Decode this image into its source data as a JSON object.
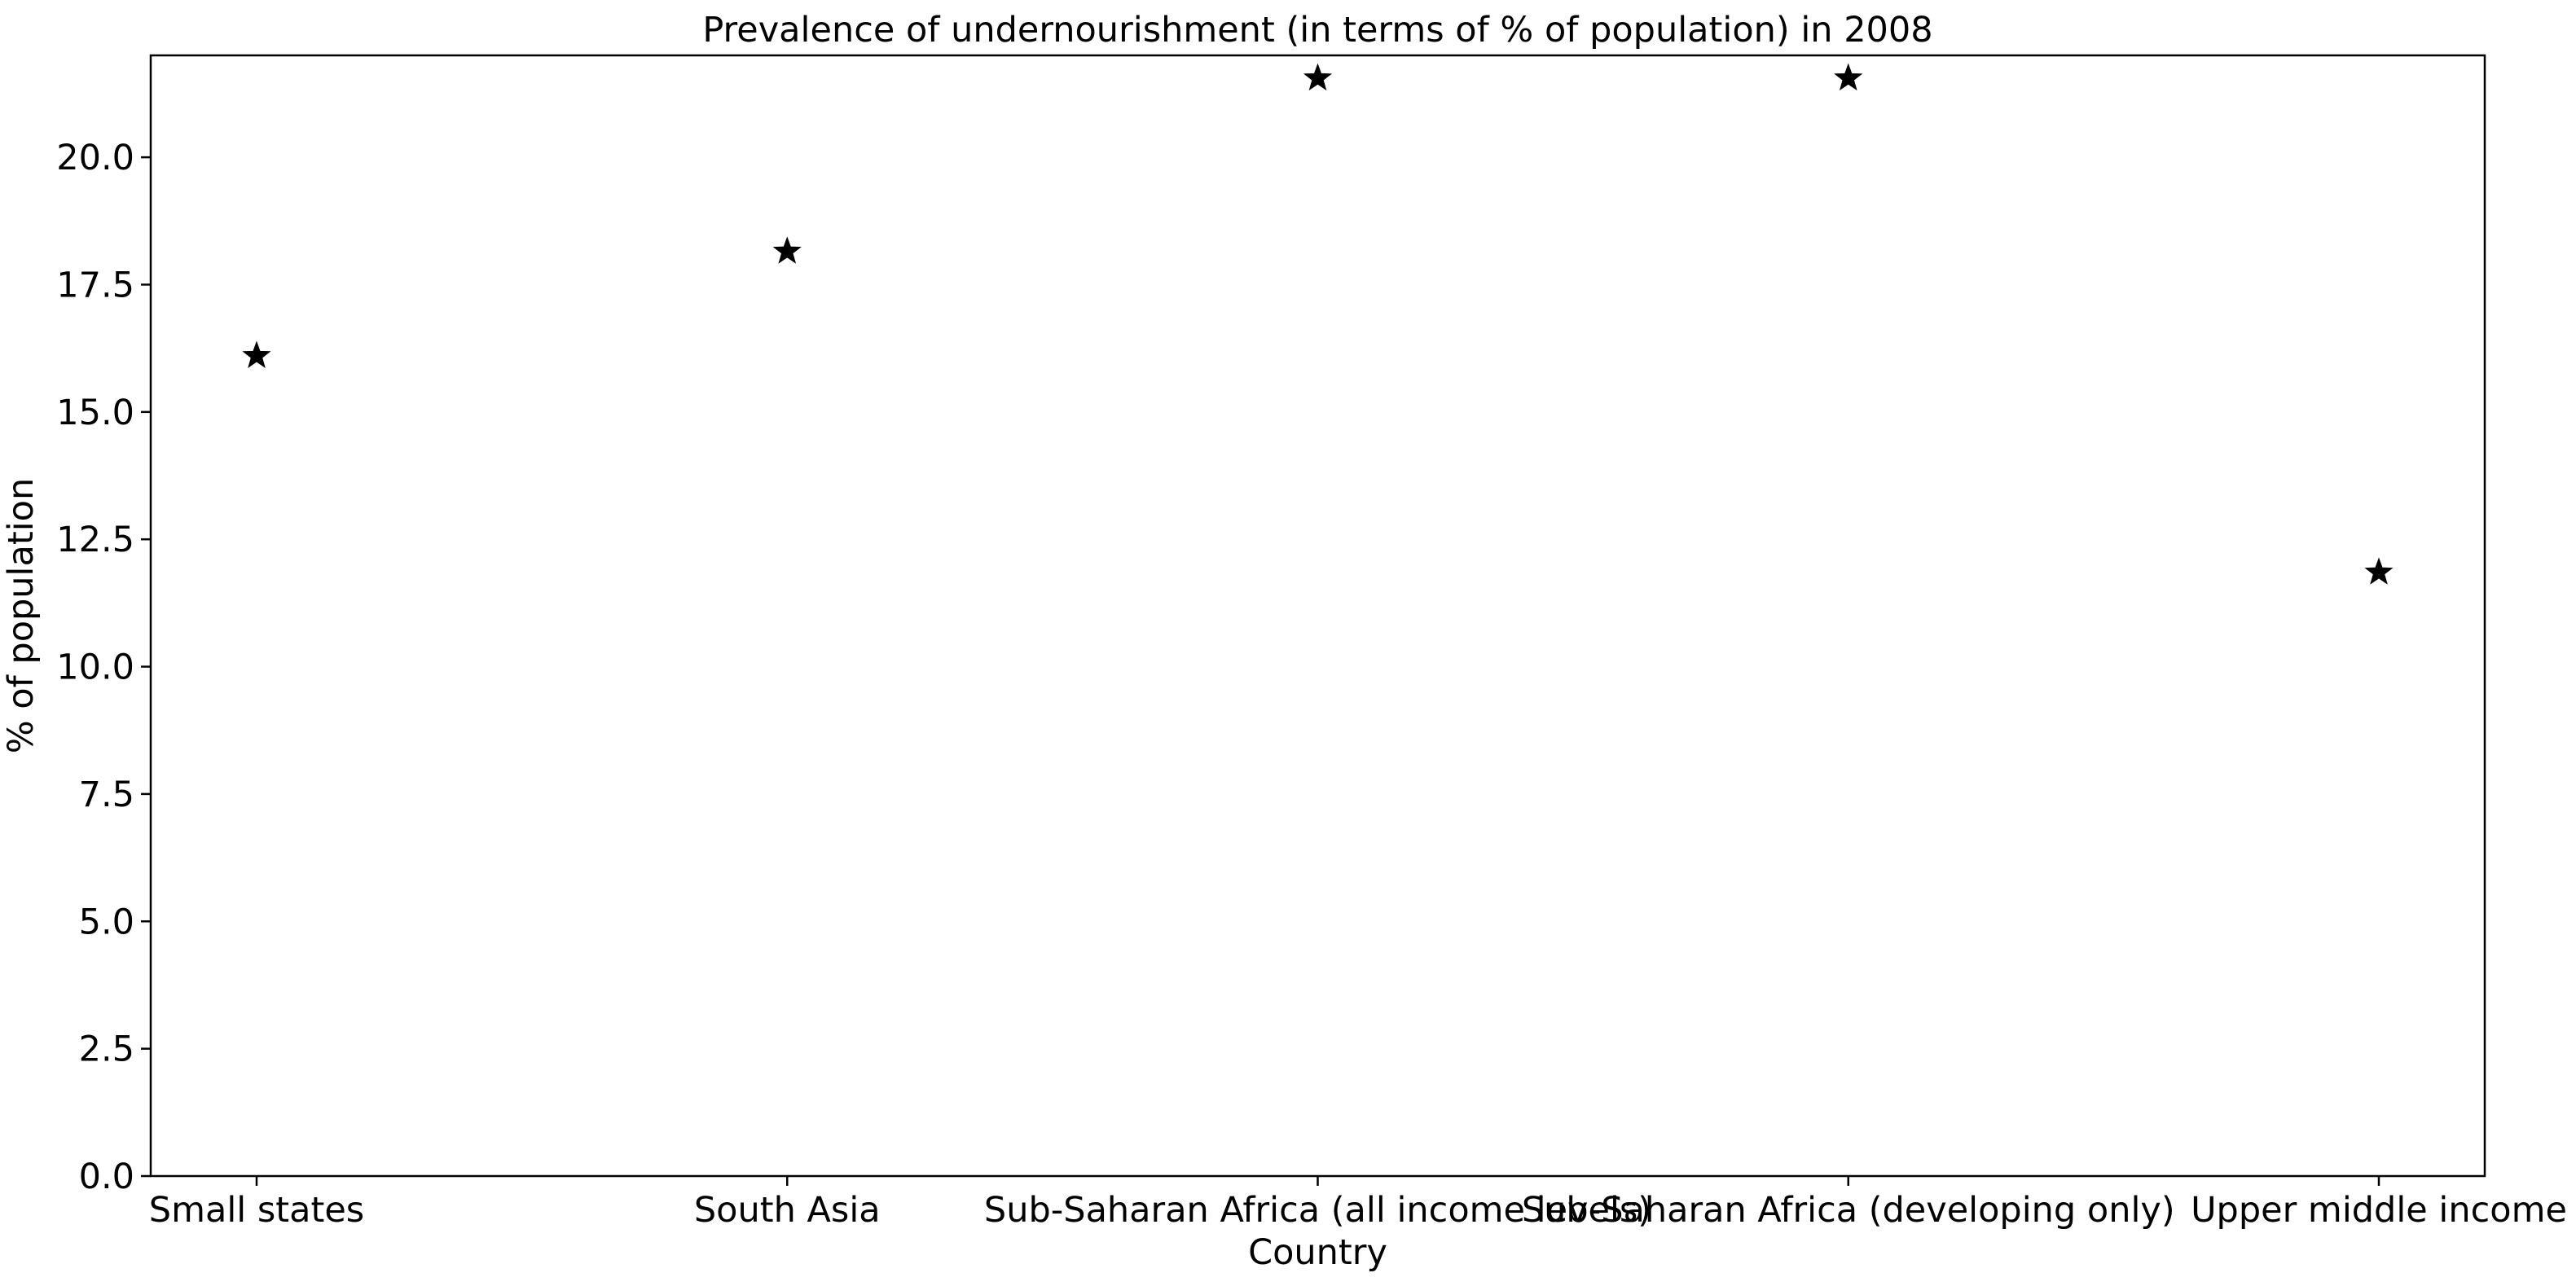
{
  "chart_data": {
    "type": "scatter",
    "title": "Prevalence of undernourishment (in terms of % of population) in 2008",
    "xlabel": "Country",
    "ylabel": "% of population",
    "categories": [
      "Small states",
      "South Asia",
      "Sub-Saharan Africa (all income levels)",
      "Sub-Saharan Africa (developing only)",
      "Upper middle income"
    ],
    "values": [
      16.1,
      18.15,
      21.55,
      21.55,
      11.85
    ],
    "ylim": [
      0,
      22
    ],
    "yticks": [
      0.0,
      2.5,
      5.0,
      7.5,
      10.0,
      12.5,
      15.0,
      17.5,
      20.0
    ],
    "ytick_labels": [
      "0.0",
      "2.5",
      "5.0",
      "7.5",
      "10.0",
      "12.5",
      "15.0",
      "17.5",
      "20.0"
    ],
    "marker": "star",
    "marker_color": "#000000",
    "grid": false,
    "legend": "none"
  }
}
